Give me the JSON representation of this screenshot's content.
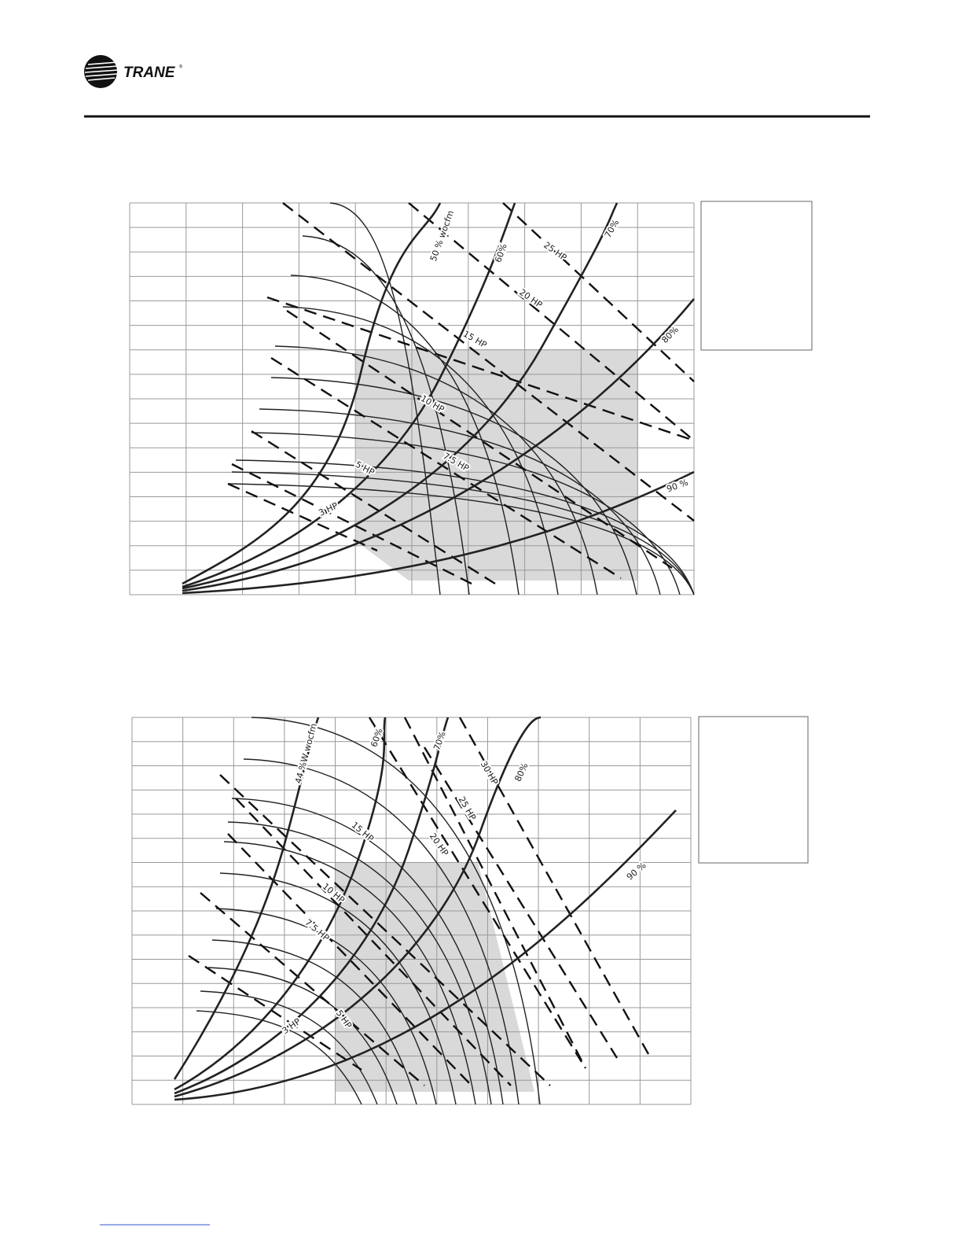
{
  "header": {
    "brand": "TRANE",
    "trademark": "®"
  },
  "charts": [
    {
      "labels": [
        "50 % wocfm",
        "60%",
        "70%",
        "80%",
        "90 %",
        "25 HP",
        "20 HP",
        "15 HP",
        "10 HP",
        "7.5 HP",
        "5 HP",
        "3 HP"
      ]
    },
    {
      "labels": [
        "44 %W wocfm",
        "60%",
        "70%",
        "80%",
        "90 %",
        "30 HP",
        "25 HP",
        "20 HP",
        "15 HP",
        "10 HP",
        "7.5 HP",
        "5 HP",
        "3 HP"
      ]
    }
  ]
}
